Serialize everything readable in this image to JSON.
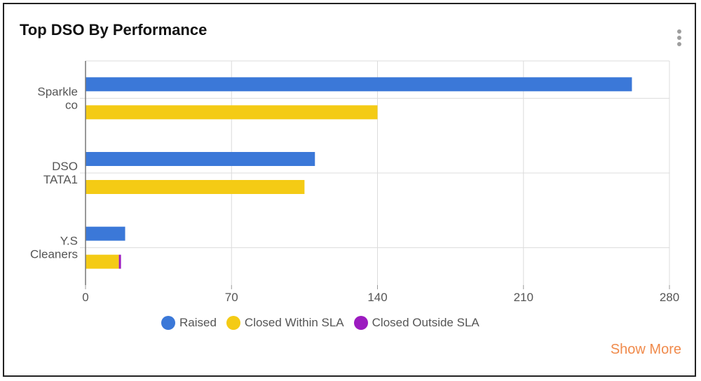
{
  "title": "Top DSO By Performance",
  "show_more": "Show More",
  "menu_icon": "more-vert-icon",
  "chart_data": {
    "type": "bar",
    "orientation": "horizontal",
    "categories": [
      [
        "Sparkle",
        "co"
      ],
      [
        "DSO",
        "TATA1"
      ],
      [
        "Y.S",
        "Cleaners"
      ]
    ],
    "category_names": [
      "Sparkle co",
      "DSO TATA1",
      "Y.S Cleaners"
    ],
    "series": [
      {
        "name": "Raised",
        "values": [
          262,
          110,
          19
        ],
        "color": "#3b78d8",
        "stack": "a"
      },
      {
        "name": "Closed Within SLA",
        "values": [
          140,
          105,
          16
        ],
        "color": "#f4cb15",
        "stack": "b"
      },
      {
        "name": "Closed Outside SLA",
        "values": [
          0,
          0,
          1
        ],
        "color": "#9c1bc0",
        "stack": "b"
      }
    ],
    "xlim": [
      0,
      280
    ],
    "xticks": [
      "0",
      "70",
      "140",
      "210",
      "280"
    ],
    "grid": true,
    "legend_position": "bottom"
  }
}
